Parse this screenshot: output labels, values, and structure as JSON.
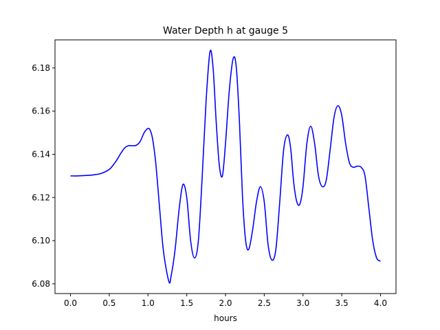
{
  "chart_data": {
    "type": "line",
    "title": "Water Depth h at gauge 5",
    "xlabel": "hours",
    "ylabel": "",
    "xlim": [
      -0.2,
      4.2
    ],
    "ylim": [
      6.0755,
      6.193
    ],
    "x_ticks": [
      0.0,
      0.5,
      1.0,
      1.5,
      2.0,
      2.5,
      3.0,
      3.5,
      4.0
    ],
    "x_tick_labels": [
      "0.0",
      "0.5",
      "1.0",
      "1.5",
      "2.0",
      "2.5",
      "3.0",
      "3.5",
      "4.0"
    ],
    "y_ticks": [
      6.08,
      6.1,
      6.12,
      6.14,
      6.16,
      6.18
    ],
    "y_tick_labels": [
      "6.08",
      "6.10",
      "6.12",
      "6.14",
      "6.16",
      "6.18"
    ],
    "grid": false,
    "legend": "none",
    "series": [
      {
        "color": "#0000ff",
        "x": [
          0.0,
          0.1,
          0.2,
          0.3,
          0.4,
          0.5,
          0.55,
          0.6,
          0.65,
          0.7,
          0.75,
          0.8,
          0.85,
          0.9,
          0.95,
          1.0,
          1.03,
          1.06,
          1.1,
          1.15,
          1.2,
          1.27,
          1.3,
          1.35,
          1.4,
          1.45,
          1.5,
          1.55,
          1.6,
          1.65,
          1.7,
          1.75,
          1.8,
          1.84,
          1.88,
          1.92,
          1.96,
          2.0,
          2.05,
          2.1,
          2.14,
          2.18,
          2.22,
          2.26,
          2.3,
          2.35,
          2.4,
          2.45,
          2.5,
          2.55,
          2.6,
          2.65,
          2.7,
          2.75,
          2.8,
          2.84,
          2.88,
          2.92,
          2.96,
          3.0,
          3.05,
          3.1,
          3.15,
          3.2,
          3.25,
          3.3,
          3.35,
          3.4,
          3.45,
          3.5,
          3.55,
          3.6,
          3.65,
          3.7,
          3.75,
          3.8,
          3.85,
          3.9,
          3.95,
          4.0
        ],
        "y": [
          6.13,
          6.13,
          6.1302,
          6.1305,
          6.1312,
          6.133,
          6.135,
          6.1375,
          6.1405,
          6.143,
          6.144,
          6.144,
          6.1442,
          6.146,
          6.15,
          6.152,
          6.151,
          6.147,
          6.136,
          6.115,
          6.095,
          6.081,
          6.084,
          6.096,
          6.114,
          6.126,
          6.12,
          6.1,
          6.092,
          6.1,
          6.13,
          6.165,
          6.1875,
          6.18,
          6.155,
          6.135,
          6.13,
          6.145,
          6.17,
          6.1845,
          6.18,
          6.155,
          6.12,
          6.1,
          6.096,
          6.105,
          6.118,
          6.125,
          6.118,
          6.098,
          6.091,
          6.096,
          6.118,
          6.142,
          6.149,
          6.143,
          6.127,
          6.118,
          6.117,
          6.125,
          6.145,
          6.153,
          6.145,
          6.13,
          6.125,
          6.128,
          6.142,
          6.157,
          6.1625,
          6.158,
          6.145,
          6.136,
          6.134,
          6.1345,
          6.134,
          6.13,
          6.115,
          6.1,
          6.092,
          6.0905
        ]
      }
    ]
  }
}
